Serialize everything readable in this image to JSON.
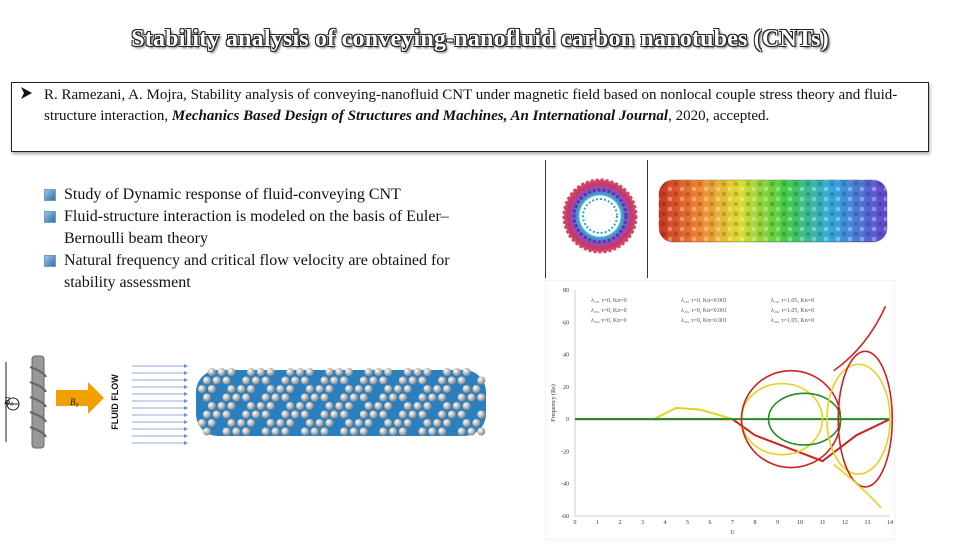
{
  "title": "Stability analysis of conveying-nanofluid carbon nanotubes (CNTs)",
  "reference": {
    "authors": "R. Ramezani, A. Mojra, Stability analysis of conveying-nanofluid CNT under magnetic field based on nonlocal couple stress theory and fluid-structure interaction,",
    "journal": "Mechanics Based Design of Structures and Machines, An International Journal",
    "suffix": ", 2020, accepted."
  },
  "bullets": [
    "Study of Dynamic response of fluid-conveying CNT",
    "Fluid-structure interaction is modeled on the basis of Euler–Bernoulli beam theory",
    "Natural frequency and critical flow velocity are obtained for stability assessment"
  ],
  "diagram": {
    "field_label": "B₀",
    "velocity_label": "B₀",
    "flow_label": "FLUID FLOW"
  },
  "colors": {
    "title_fill": "#ffffff",
    "bullet": "#3a7bbf",
    "cnt_blue": "#2a7fbf",
    "atom_grey": "#c8c8c8"
  },
  "chart_data": {
    "type": "line",
    "xlabel": "U",
    "ylabel": "Frequency (Re)",
    "xlim": [
      0,
      14
    ],
    "ylim": [
      -60,
      80
    ],
    "xticks": [
      "0",
      "1",
      "2",
      "3",
      "4",
      "5",
      "6",
      "7",
      "8",
      "9",
      "10",
      "11",
      "12",
      "13",
      "14"
    ],
    "yticks": [
      "80",
      "60",
      "40",
      "20",
      "0",
      "-20",
      "-40",
      "-60"
    ],
    "legend": [
      "λ₁₀, τ=0, Kn=0",
      "λ₁₀, τ=0, Kn=0.001",
      "λ₁₀, τ=1.05, Kn=0",
      "λ₂₀, τ=0, Kn=0",
      "λ₂₀, τ=0, Kn=0.001",
      "λ₂₀, τ=1.05, Kn=0",
      "λ₃₀, τ=0, Kn=0",
      "λ₃₀, τ=0, Kn=0.001",
      "λ₃₀, τ=1.05, Kn=0"
    ],
    "series": [
      {
        "name": "red",
        "color": "#cc2222",
        "x": [
          0,
          7,
          8,
          9.5,
          11,
          12.5,
          14
        ],
        "y": [
          0,
          0,
          -10,
          -18,
          -26,
          -10,
          0
        ]
      },
      {
        "name": "yellow",
        "color": "#e8d020",
        "x": [
          3.5,
          4.5,
          5.5,
          6.3,
          7
        ],
        "y": [
          0,
          7,
          6,
          3,
          0
        ]
      },
      {
        "name": "green",
        "color": "#228b22",
        "x": [
          0,
          9,
          11,
          14
        ],
        "y": [
          0,
          0,
          0,
          0
        ]
      }
    ]
  }
}
